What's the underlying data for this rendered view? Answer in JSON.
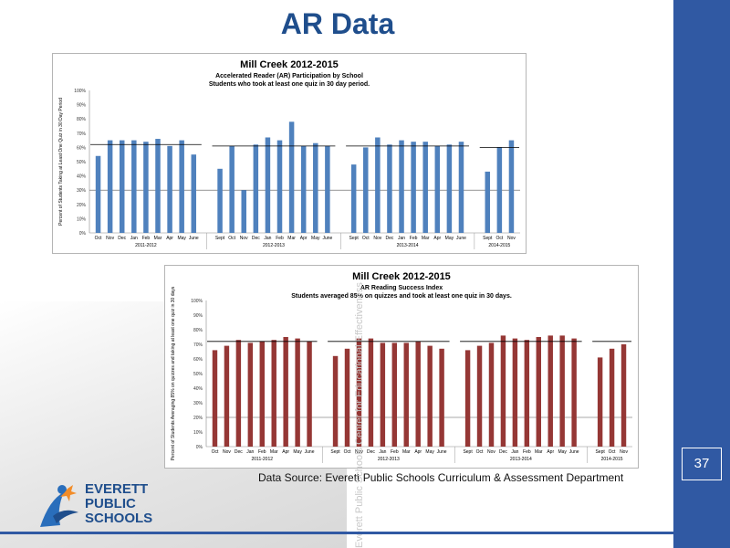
{
  "slide": {
    "title": "AR Data",
    "page_number": "37",
    "source": "Data Source: Everett Public Schools Curriculum & Assessment Department",
    "watermark": "Everett Public Schools Center for Educational Effectiveness",
    "logo": {
      "line1": "EVERETT",
      "line2": "PUBLIC",
      "line3": "SCHOOLS"
    }
  },
  "chart_data": [
    {
      "type": "bar",
      "title": "Mill Creek 2012-2015",
      "subtitle1": "Accelerated Reader (AR) Participation by School",
      "subtitle2": "Students who took at least one quiz in 30 day period.",
      "ylabel": "Percent of Students Taking at Least One Quiz in 30 Day Period",
      "ylim": [
        0,
        100
      ],
      "yticks": [
        "0%",
        "10%",
        "20%",
        "30%",
        "40%",
        "50%",
        "60%",
        "70%",
        "80%",
        "90%",
        "100%"
      ],
      "color": "#4f81bd",
      "groups": [
        {
          "label": "2011-2012",
          "categories": [
            "Oct",
            "Nov",
            "Dec",
            "Jan",
            "Feb",
            "Mar",
            "Apr",
            "May",
            "June"
          ],
          "values": [
            54,
            65,
            65,
            65,
            64,
            66,
            61,
            65,
            55
          ],
          "target": 62
        },
        {
          "label": "2012-2013",
          "categories": [
            "Sept",
            "Oct",
            "Nov",
            "Dec",
            "Jan",
            "Feb",
            "Mar",
            "Apr",
            "May",
            "June"
          ],
          "values": [
            45,
            61,
            30,
            62,
            67,
            65,
            78,
            61,
            63,
            61
          ],
          "target": 61
        },
        {
          "label": "2013-2014",
          "categories": [
            "Sept",
            "Oct",
            "Nov",
            "Dec",
            "Jan",
            "Feb",
            "Mar",
            "Apr",
            "May",
            "June"
          ],
          "values": [
            48,
            60,
            67,
            62,
            65,
            64,
            64,
            61,
            62,
            64
          ],
          "target": 61
        },
        {
          "label": "2014-2015",
          "categories": [
            "Sept",
            "Oct",
            "Nov"
          ],
          "values": [
            43,
            60,
            65
          ],
          "target": 60
        }
      ],
      "reference_line": 30
    },
    {
      "type": "bar",
      "title": "Mill Creek 2012-2015",
      "subtitle1": "AR Reading Success Index",
      "subtitle2": "Students averaged 85% on quizzes and took at least one quiz in 30 days.",
      "ylabel": "Percent of Students Averaging 85% on quizzes and taking at least one quiz in 30 days",
      "ylim": [
        0,
        100
      ],
      "yticks": [
        "0%",
        "10%",
        "20%",
        "30%",
        "40%",
        "50%",
        "60%",
        "70%",
        "80%",
        "90%",
        "100%"
      ],
      "color": "#953735",
      "groups": [
        {
          "label": "2011-2012",
          "categories": [
            "Oct",
            "Nov",
            "Dec",
            "Jan",
            "Feb",
            "Mar",
            "Apr",
            "May",
            "June"
          ],
          "values": [
            66,
            69,
            73,
            71,
            72,
            73,
            75,
            74,
            72
          ],
          "target": 72
        },
        {
          "label": "2012-2013",
          "categories": [
            "Sept",
            "Oct",
            "Nov",
            "Dec",
            "Jan",
            "Feb",
            "Mar",
            "Apr",
            "May",
            "June"
          ],
          "values": [
            62,
            67,
            74,
            74,
            71,
            71,
            71,
            72,
            69,
            67
          ],
          "target": 72
        },
        {
          "label": "2013-2014",
          "categories": [
            "Sept",
            "Oct",
            "Nov",
            "Dec",
            "Jan",
            "Feb",
            "Mar",
            "Apr",
            "May",
            "June"
          ],
          "values": [
            66,
            69,
            71,
            76,
            74,
            73,
            75,
            76,
            76,
            74
          ],
          "target": 72
        },
        {
          "label": "2014-2015",
          "categories": [
            "Sept",
            "Oct",
            "Nov"
          ],
          "values": [
            61,
            67,
            70
          ],
          "target": 72
        }
      ],
      "reference_line": 20
    }
  ]
}
